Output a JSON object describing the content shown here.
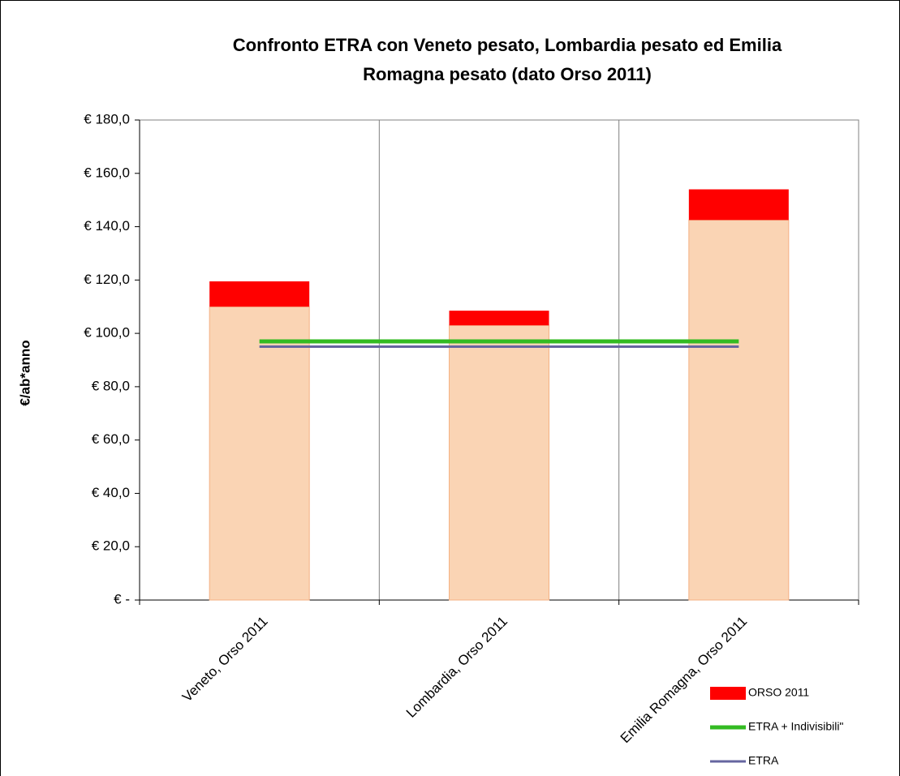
{
  "chart_data": {
    "type": "bar",
    "title": [
      "Confronto ETRA  con Veneto pesato, Lombardia pesato ed Emilia",
      "Romagna pesato (dato Orso 2011)"
    ],
    "y_label": "€/ab*anno",
    "categories": [
      "Veneto, Orso 2011",
      "Lombardia, Orso 2011",
      "Emilia Romagna, Orso 2011"
    ],
    "series": [
      {
        "type": "bar",
        "color": "#fad4b4",
        "values": [
          110,
          103,
          142.5
        ]
      },
      {
        "type": "bar",
        "name": "ORSO 2011",
        "color": "#ff0000",
        "values": [
          9.5,
          5.5,
          11.5
        ]
      },
      {
        "type": "line",
        "name": "ETRA + Indivisibili\"",
        "color": "#33bb22",
        "values": [
          97,
          97,
          97
        ]
      },
      {
        "type": "line",
        "name": "ETRA",
        "color": "#6666a0",
        "values": [
          95,
          95,
          95
        ]
      }
    ],
    "ylim": [
      0,
      180
    ],
    "yticks": [
      {
        "value": 0,
        "label": "€ -"
      },
      {
        "value": 20,
        "label": "€ 20,0"
      },
      {
        "value": 40,
        "label": "€ 40,0"
      },
      {
        "value": 60,
        "label": "€ 60,0"
      },
      {
        "value": 80,
        "label": "€ 80,0"
      },
      {
        "value": 100,
        "label": "€ 100,0"
      },
      {
        "value": 120,
        "label": "€ 120,0"
      },
      {
        "value": 140,
        "label": "€ 140,0"
      },
      {
        "value": 160,
        "label": "€ 160,0"
      },
      {
        "value": 180,
        "label": "€ 180,0"
      }
    ],
    "x_grid": true,
    "legend": "bottom-right"
  }
}
